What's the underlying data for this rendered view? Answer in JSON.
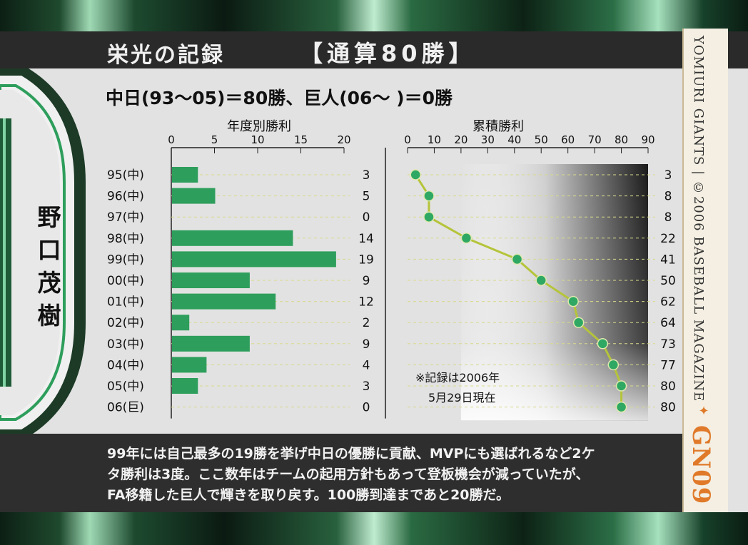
{
  "header": {
    "title": "栄光の記録",
    "highlight": "【通算80勝】",
    "subtitle": "中日(93〜05)＝80勝、巨人(06〜 )＝0勝"
  },
  "player": {
    "name": "野口茂樹"
  },
  "side": {
    "credit": "YOMIURI GIANTS | ©2006 BASEBALL MAGAZINE",
    "card_code": "GN09"
  },
  "note": {
    "line1": "※記録は2006年",
    "line2": "5月29日現在"
  },
  "description": [
    "99年には自己最多の19勝を挙げ中日の優勝に貢献、MVPにも選ばれるなど2ケ",
    "タ勝利は3度。ここ数年はチームの起用方針もあって登板機会が減っていたが、",
    "FA移籍した巨人で輝きを取り戻す。100勝到達まであと20勝だ。"
  ],
  "colors": {
    "bar": "#2e9e5c",
    "line": "#b5c43a",
    "point": "#2fa863",
    "accent": "#e07a2a"
  },
  "chart_data": [
    {
      "type": "bar",
      "title": "年度別勝利",
      "orientation": "horizontal",
      "categories": [
        "95(中)",
        "96(中)",
        "97(中)",
        "98(中)",
        "99(中)",
        "00(中)",
        "01(中)",
        "02(中)",
        "03(中)",
        "04(中)",
        "05(中)",
        "06(巨)"
      ],
      "values": [
        3,
        5,
        0,
        14,
        19,
        9,
        12,
        2,
        9,
        4,
        3,
        0
      ],
      "xlim": [
        0,
        20
      ],
      "xticks": [
        0,
        5,
        10,
        15,
        20
      ],
      "data_labels": true
    },
    {
      "type": "line",
      "title": "累積勝利",
      "orientation": "horizontal",
      "categories": [
        "95(中)",
        "96(中)",
        "97(中)",
        "98(中)",
        "99(中)",
        "00(中)",
        "01(中)",
        "02(中)",
        "03(中)",
        "04(中)",
        "05(中)",
        "06(巨)"
      ],
      "values": [
        3,
        8,
        8,
        22,
        41,
        50,
        62,
        64,
        73,
        77,
        80,
        80
      ],
      "xlim": [
        0,
        90
      ],
      "xticks": [
        0,
        10,
        20,
        30,
        40,
        50,
        60,
        70,
        80,
        90
      ],
      "data_labels": true
    }
  ]
}
